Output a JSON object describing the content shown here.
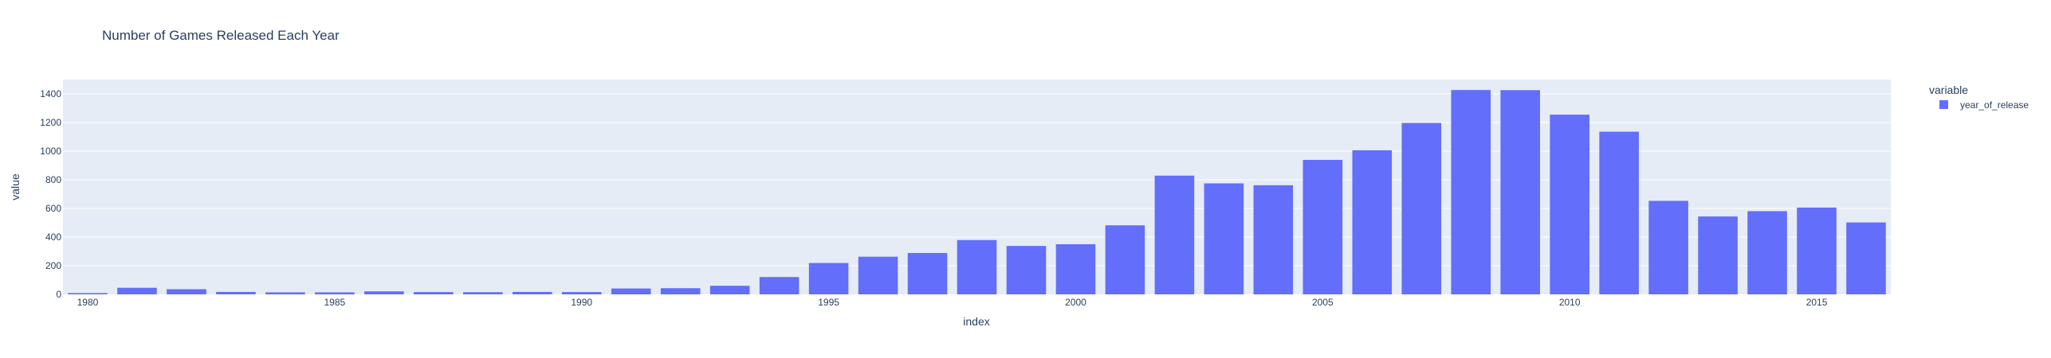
{
  "chart_data": {
    "type": "bar",
    "title": "Number of Games Released Each Year",
    "xlabel": "index",
    "ylabel": "value",
    "x": [
      1980,
      1981,
      1982,
      1983,
      1984,
      1985,
      1986,
      1987,
      1988,
      1989,
      1990,
      1991,
      1992,
      1993,
      1994,
      1995,
      1996,
      1997,
      1998,
      1999,
      2000,
      2001,
      2002,
      2003,
      2004,
      2005,
      2006,
      2007,
      2008,
      2009,
      2010,
      2011,
      2012,
      2013,
      2014,
      2015,
      2016
    ],
    "series": [
      {
        "name": "year_of_release",
        "color": "#636efa",
        "values": [
          9,
          46,
          36,
          17,
          14,
          14,
          21,
          16,
          15,
          17,
          16,
          41,
          43,
          60,
          121,
          219,
          263,
          289,
          379,
          338,
          350,
          482,
          829,
          775,
          762,
          939,
          1006,
          1197,
          1427,
          1426,
          1255,
          1136,
          653,
          544,
          581,
          606,
          502
        ]
      }
    ],
    "x_ticks": [
      1980,
      1985,
      1990,
      1995,
      2000,
      2005,
      2010,
      2015
    ],
    "y_ticks": [
      0,
      200,
      400,
      600,
      800,
      1000,
      1200,
      1400
    ],
    "xlim": [
      1979.5,
      2016.5
    ],
    "ylim": [
      0,
      1500
    ],
    "grid": true,
    "legend": {
      "title": "variable",
      "position": "top-right"
    }
  },
  "colors": {
    "plot_background": "#e5ecf6",
    "grid": "#ffffff",
    "text": "#2a3f5f"
  }
}
